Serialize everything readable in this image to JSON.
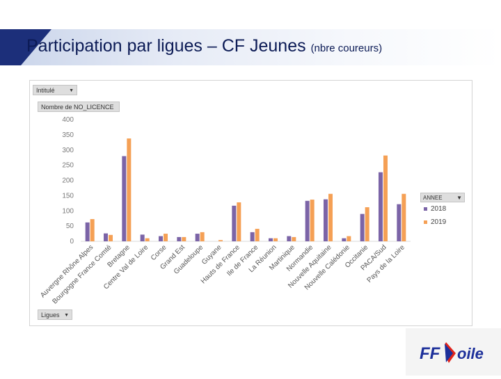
{
  "header": {
    "title": "Participation par ligues – CF Jeunes",
    "subtitle": "(nbre coureurs)"
  },
  "filters": {
    "top_filter": "Intitulé",
    "value_field": "Nombre de NO_LICENCE",
    "axis_field": "Ligues",
    "legend_field": "ANNEE"
  },
  "colors": {
    "s2018": "#7b64a7",
    "s2019": "#f5a055"
  },
  "logo": {
    "text": "FFVoile"
  },
  "chart_data": {
    "type": "bar",
    "title": "",
    "xlabel": "",
    "ylabel": "",
    "ylim": [
      0,
      400
    ],
    "yticks": [
      0,
      50,
      100,
      150,
      200,
      250,
      300,
      350,
      400
    ],
    "legend_position": "right",
    "categories": [
      "Auvergne Rhône Alpes",
      "Bourgogne France Comté",
      "Bretagne",
      "Centre Val de Loire",
      "Corse",
      "Grand Est",
      "Guadeloupe",
      "Guyane",
      "Hauts de France",
      "Ile de France",
      "La Réunion",
      "Martinique",
      "Normandie",
      "Nouvelle Aquitaine",
      "Nouvelle Calédonie",
      "Occitanie",
      "PACA/Sud",
      "Pays de la Loire"
    ],
    "series": [
      {
        "name": "2018",
        "values": [
          62,
          26,
          280,
          22,
          17,
          14,
          25,
          0,
          117,
          30,
          10,
          17,
          133,
          138,
          10,
          90,
          227,
          122
        ]
      },
      {
        "name": "2019",
        "values": [
          73,
          21,
          338,
          10,
          25,
          14,
          30,
          4,
          128,
          41,
          10,
          14,
          137,
          156,
          17,
          112,
          282,
          156
        ]
      }
    ]
  }
}
